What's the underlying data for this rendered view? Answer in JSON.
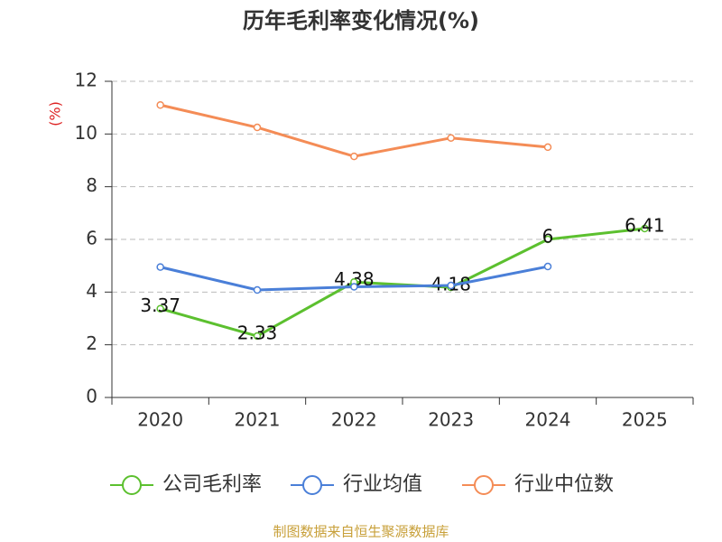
{
  "chart_data": {
    "type": "line",
    "title": "历年毛利率变化情况(%)",
    "y_label": "(%)",
    "categories": [
      "2020",
      "2021",
      "2022",
      "2023",
      "2024",
      "2025"
    ],
    "series": [
      {
        "name": "公司毛利率",
        "color": "#5cc02f",
        "values": [
          3.37,
          2.33,
          4.38,
          4.18,
          6,
          6.41
        ],
        "show_labels": true
      },
      {
        "name": "行业均值",
        "color": "#4a7fd8",
        "values": [
          4.95,
          4.08,
          4.2,
          4.25,
          4.97,
          null
        ],
        "show_labels": false
      },
      {
        "name": "行业中位数",
        "color": "#f48c56",
        "values": [
          11.1,
          10.25,
          9.15,
          9.85,
          9.5,
          null
        ],
        "show_labels": false
      }
    ],
    "ylim": [
      0,
      12
    ],
    "yticks": [
      0,
      2,
      4,
      6,
      8,
      10,
      12
    ],
    "grid": true,
    "legend": "bottom",
    "source": "制图数据来自恒生聚源数据库"
  }
}
